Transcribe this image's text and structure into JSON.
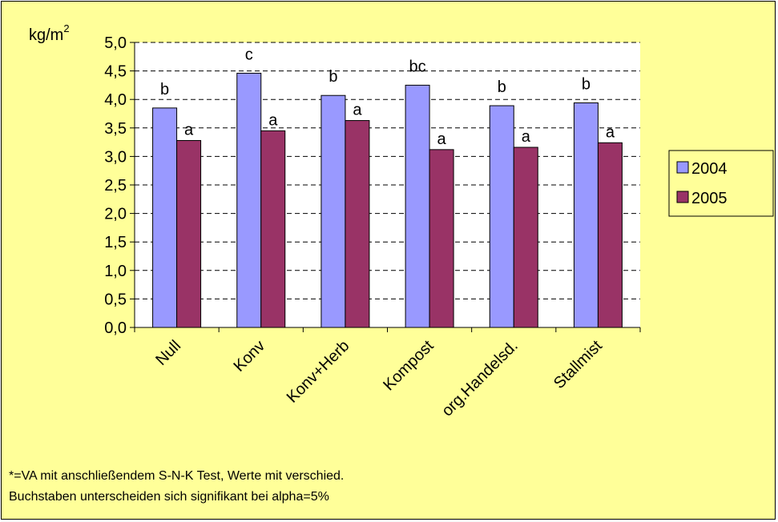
{
  "chart_data": {
    "type": "bar",
    "ylabel": "kg/m",
    "ylabel_sup": "2",
    "ylim": [
      0,
      5
    ],
    "y_ticks": [
      "0,0",
      "0,5",
      "1,0",
      "1,5",
      "2,0",
      "2,5",
      "3,0",
      "3,5",
      "4,0",
      "4,5",
      "5,0"
    ],
    "categories": [
      "Null",
      "Konv",
      "Konv+Herb",
      "Kompost",
      "org.Handelsd.",
      "Stallmist"
    ],
    "series": [
      {
        "name": "2004",
        "values": [
          3.85,
          4.46,
          4.07,
          4.25,
          3.89,
          3.94
        ],
        "letters": [
          "b",
          "c",
          "b",
          "bc",
          "b",
          "b"
        ]
      },
      {
        "name": "2005",
        "values": [
          3.28,
          3.45,
          3.63,
          3.12,
          3.16,
          3.24
        ],
        "letters": [
          "a",
          "a",
          "a",
          "a",
          "a",
          "a"
        ]
      }
    ],
    "colors": {
      "2004": "#9999ff",
      "2005": "#993366",
      "background": "#ffff99",
      "plot": "#ffffff"
    },
    "grid": "dashed horizontal",
    "legend_position": "right"
  },
  "footnote": {
    "line1": "*=VA mit anschließendem S-N-K Test, Werte mit verschied.",
    "line2": "Buchstaben unterscheiden sich signifikant bei alpha=5%"
  }
}
